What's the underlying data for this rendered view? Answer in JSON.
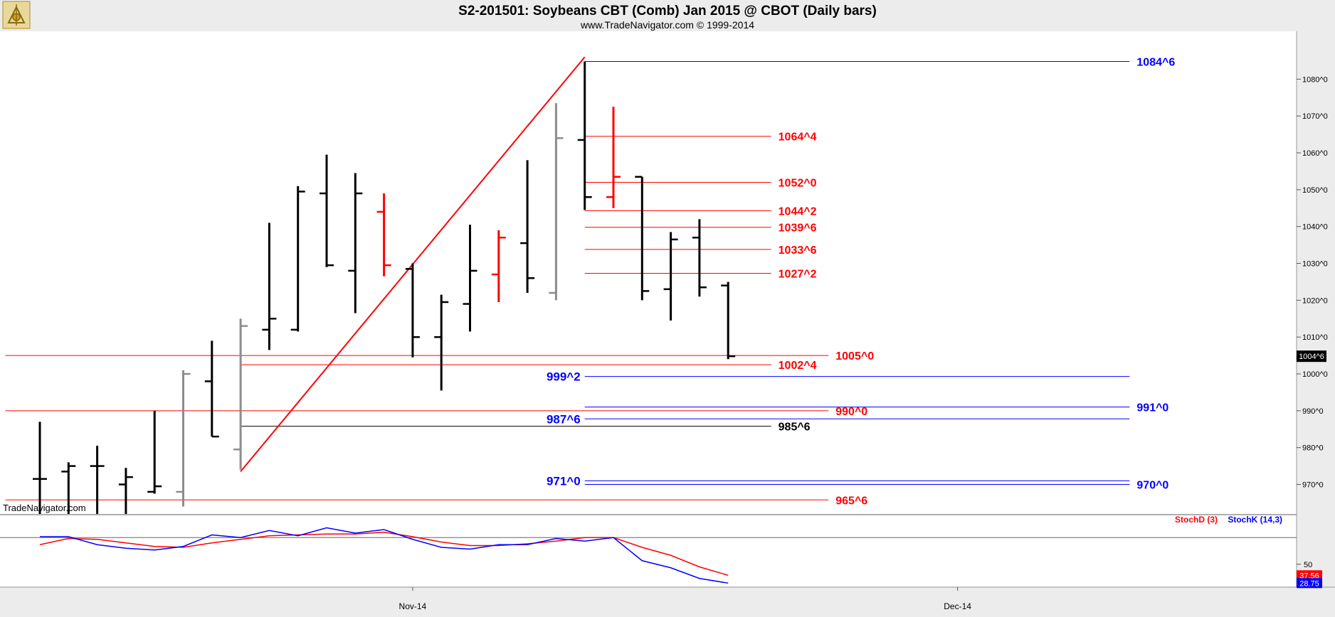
{
  "header": {
    "title": "S2-201501:  Soybeans CBT (Comb) Jan 2015 @ CBOT  (Daily bars)",
    "subtitle": "www.TradeNavigator.com © 1999-2014",
    "logo_icon": "sextant-logo-icon"
  },
  "watermark": "TradeNavigator.com",
  "colors": {
    "up_bar": "#000000",
    "down_bar": "#ff0000",
    "gray_bar": "#8c8c8c",
    "level_red": "#ff0000",
    "level_blue": "#0000ff",
    "stoch_d": "#ff0000",
    "stoch_k": "#0000ff",
    "price_marker_bg": "#000000"
  },
  "chart_data": [
    {
      "type": "ohlc",
      "title": "S2-201501:  Soybeans CBT (Comb) Jan 2015 @ CBOT  (Daily bars)",
      "ylim": [
        962,
        1093
      ],
      "y_ticks": [
        {
          "value": 970,
          "label": "970^0"
        },
        {
          "value": 980,
          "label": "980^0"
        },
        {
          "value": 990,
          "label": "990^0"
        },
        {
          "value": 1000,
          "label": "1000^0"
        },
        {
          "value": 1010,
          "label": "1010^0"
        },
        {
          "value": 1020,
          "label": "1020^0"
        },
        {
          "value": 1030,
          "label": "1030^0"
        },
        {
          "value": 1040,
          "label": "1040^0"
        },
        {
          "value": 1050,
          "label": "1050^0"
        },
        {
          "value": 1060,
          "label": "1060^0"
        },
        {
          "value": 1070,
          "label": "1070^0"
        },
        {
          "value": 1080,
          "label": "1080^0"
        }
      ],
      "x_labels": [
        {
          "index": 13,
          "label": "Nov-14"
        },
        {
          "index": 32,
          "label": "Dec-14"
        }
      ],
      "last_price_label": "1004^6",
      "bars": [
        {
          "o": 971.5,
          "h": 987.0,
          "l": 962.0,
          "c": 971.5,
          "color": "up"
        },
        {
          "o": 973.5,
          "h": 976.0,
          "l": 962.0,
          "c": 975.0,
          "color": "up"
        },
        {
          "o": 975.0,
          "h": 980.5,
          "l": 962.0,
          "c": 975.0,
          "color": "up"
        },
        {
          "o": 970.0,
          "h": 974.5,
          "l": 962.0,
          "c": 972.0,
          "color": "up"
        },
        {
          "o": 968.0,
          "h": 990.0,
          "l": 967.5,
          "c": 969.5,
          "color": "up"
        },
        {
          "o": 968.0,
          "h": 1001.0,
          "l": 964.0,
          "c": 1000.0,
          "color": "gray"
        },
        {
          "o": 998.0,
          "h": 1009.0,
          "l": 983.0,
          "c": 983.0,
          "color": "up"
        },
        {
          "o": 979.5,
          "h": 1015.0,
          "l": 974.0,
          "c": 1013.0,
          "color": "gray"
        },
        {
          "o": 1012.0,
          "h": 1041.0,
          "l": 1006.5,
          "c": 1015.0,
          "color": "up"
        },
        {
          "o": 1012.0,
          "h": 1051.0,
          "l": 1011.5,
          "c": 1049.5,
          "color": "up"
        },
        {
          "o": 1049.0,
          "h": 1059.5,
          "l": 1029.0,
          "c": 1029.5,
          "color": "up"
        },
        {
          "o": 1028.0,
          "h": 1054.5,
          "l": 1016.5,
          "c": 1049.0,
          "color": "up"
        },
        {
          "o": 1044.0,
          "h": 1049.0,
          "l": 1026.5,
          "c": 1029.5,
          "color": "down"
        },
        {
          "o": 1028.5,
          "h": 1030.0,
          "l": 1004.5,
          "c": 1010.0,
          "color": "up"
        },
        {
          "o": 1010.0,
          "h": 1021.5,
          "l": 995.5,
          "c": 1019.5,
          "color": "up"
        },
        {
          "o": 1019.0,
          "h": 1040.5,
          "l": 1011.5,
          "c": 1028.0,
          "color": "up"
        },
        {
          "o": 1027.0,
          "h": 1039.0,
          "l": 1019.5,
          "c": 1037.0,
          "color": "down"
        },
        {
          "o": 1035.5,
          "h": 1058.0,
          "l": 1022.0,
          "c": 1026.0,
          "color": "up"
        },
        {
          "o": 1022.0,
          "h": 1073.5,
          "l": 1020.0,
          "c": 1064.0,
          "color": "gray"
        },
        {
          "o": 1063.5,
          "h": 1084.8,
          "l": 1044.5,
          "c": 1048.0,
          "color": "up"
        },
        {
          "o": 1048.0,
          "h": 1072.5,
          "l": 1045.0,
          "c": 1053.5,
          "color": "down"
        },
        {
          "o": 1053.5,
          "h": 1053.5,
          "l": 1020.0,
          "c": 1022.5,
          "color": "up"
        },
        {
          "o": 1023.0,
          "h": 1038.5,
          "l": 1014.5,
          "c": 1036.5,
          "color": "up"
        },
        {
          "o": 1037.0,
          "h": 1042.0,
          "l": 1021.0,
          "c": 1023.5,
          "color": "up"
        },
        {
          "o": 1024.0,
          "h": 1025.0,
          "l": 1004.0,
          "c": 1004.8,
          "color": "up"
        }
      ],
      "swing_line": {
        "from_index": 7,
        "from_price": 973.5,
        "to_index": 19,
        "to_price": 1086.0
      },
      "levels": [
        {
          "value": 1084.8,
          "label": "1084^6",
          "color": "blue",
          "from": 19,
          "to": 38,
          "label_at": 38,
          "label_side": "right"
        },
        {
          "value": 1064.5,
          "label": "1064^4",
          "color": "red",
          "from": 19,
          "to": 25.5,
          "label_at": 25.5,
          "label_side": "right"
        },
        {
          "value": 1052.0,
          "label": "1052^0",
          "color": "red",
          "from": 19,
          "to": 25.5,
          "label_at": 25.5,
          "label_side": "right"
        },
        {
          "value": 1044.3,
          "label": "1044^2",
          "color": "red",
          "from": 19,
          "to": 25.5,
          "label_at": 25.5,
          "label_side": "right"
        },
        {
          "value": 1039.8,
          "label": "1039^6",
          "color": "red",
          "from": 19,
          "to": 25.5,
          "label_at": 25.5,
          "label_side": "right"
        },
        {
          "value": 1033.8,
          "label": "1033^6",
          "color": "red",
          "from": 19,
          "to": 25.5,
          "label_at": 25.5,
          "label_side": "right"
        },
        {
          "value": 1027.3,
          "label": "1027^2",
          "color": "red",
          "from": 19,
          "to": 25.5,
          "label_at": 25.5,
          "label_side": "right"
        },
        {
          "value": 1005.0,
          "label": "1005^0",
          "color": "red",
          "from": -1.2,
          "to": 27.5,
          "label_at": 27.5,
          "label_side": "right"
        },
        {
          "value": 1002.5,
          "label": "1002^4",
          "color": "red",
          "from": 7,
          "to": 25.5,
          "label_at": 25.5,
          "label_side": "right"
        },
        {
          "value": 999.3,
          "label": "999^2",
          "color": "blue",
          "from": 19,
          "to": 38,
          "label_at": 19,
          "label_side": "left"
        },
        {
          "value": 991.0,
          "label": "991^0",
          "color": "blue",
          "from": 19,
          "to": 38,
          "label_at": 38,
          "label_side": "right"
        },
        {
          "value": 990.0,
          "label": "990^0",
          "color": "red",
          "from": -1.2,
          "to": 27.5,
          "label_at": 27.5,
          "label_side": "right"
        },
        {
          "value": 987.8,
          "label": "987^6",
          "color": "blue",
          "from": 19,
          "to": 38,
          "label_at": 19,
          "label_side": "left"
        },
        {
          "value": 985.8,
          "label": "985^6",
          "color": "black",
          "from": 7,
          "to": 25.5,
          "label_at": 25.5,
          "label_side": "right"
        },
        {
          "value": 971.0,
          "label": "971^0",
          "color": "blue",
          "from": 19,
          "to": 38,
          "label_at": 19,
          "label_side": "left"
        },
        {
          "value": 970.0,
          "label": "970^0",
          "color": "blue",
          "from": 19,
          "to": 38,
          "label_at": 38,
          "label_side": "right"
        },
        {
          "value": 965.8,
          "label": "965^6",
          "color": "red",
          "from": -1.2,
          "to": 27.5,
          "label_at": 27.5,
          "label_side": "right"
        }
      ]
    },
    {
      "type": "line",
      "legend": [
        "StochD (3)",
        "StochK (14,3)"
      ],
      "ylim": [
        25,
        105
      ],
      "y_tick": {
        "value": 50,
        "label": "50"
      },
      "reference_line": 80,
      "series": [
        {
          "name": "StochD (3)",
          "color": "red",
          "values": [
            72,
            79,
            78,
            74,
            70,
            69,
            74,
            78,
            82,
            83,
            84,
            84,
            86,
            81,
            75,
            71,
            71,
            73,
            76,
            80,
            80,
            69,
            60,
            47,
            37.56
          ]
        },
        {
          "name": "StochK (14,3)",
          "color": "blue",
          "values": [
            81,
            81,
            72,
            68,
            66,
            70,
            83,
            80,
            88,
            82,
            91,
            85,
            89,
            78,
            69,
            67,
            72,
            72,
            79,
            76,
            80,
            54,
            46,
            34,
            28.75
          ]
        }
      ],
      "value_labels": [
        {
          "label": "37.56",
          "color": "red"
        },
        {
          "label": "28.75",
          "color": "blue"
        }
      ]
    }
  ]
}
